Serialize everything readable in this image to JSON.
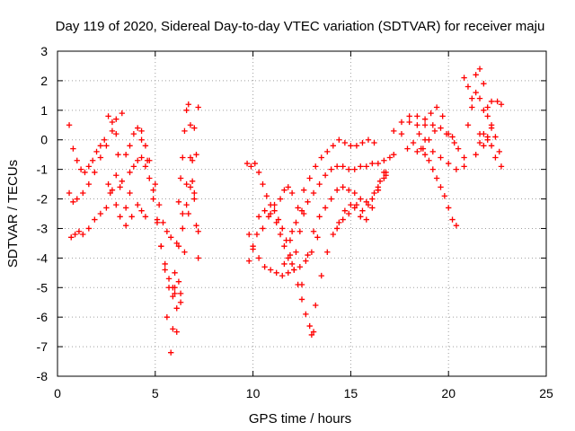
{
  "chart_data": {
    "type": "scatter",
    "title": "Day 119 of 2020, Sidereal Day-to-day VTEC variation (SDTVAR) for receiver maju",
    "xlabel": "GPS time / hours",
    "ylabel": "SDTVAR / TECUs",
    "xlim": [
      0,
      25
    ],
    "ylim": [
      -8,
      3
    ],
    "xticks": [
      0,
      5,
      10,
      15,
      20,
      25
    ],
    "yticks": [
      -8,
      -7,
      -6,
      -5,
      -4,
      -3,
      -2,
      -1,
      0,
      1,
      2,
      3
    ],
    "xtick_labels": [
      "0",
      "5",
      "10",
      "15",
      "20",
      "25"
    ],
    "ytick_labels": [
      "-8",
      "-7",
      "-6",
      "-5",
      "-4",
      "-3",
      "-2",
      "-1",
      "0",
      "1",
      "2",
      "3"
    ],
    "grid": true,
    "marker": "+",
    "color": "#ff0000",
    "series": [
      {
        "x": [
          0.6,
          0.8,
          1.0,
          1.2,
          1.4,
          1.6,
          1.8,
          2.0,
          2.2,
          2.4
        ],
        "y": [
          0.5,
          -0.3,
          -0.7,
          -1.0,
          -1.1,
          -0.9,
          -0.7,
          -0.4,
          -0.2,
          0.0
        ]
      },
      {
        "x": [
          0.6,
          0.8,
          1.0,
          1.3,
          1.6,
          1.9,
          2.2,
          2.5,
          2.8,
          3.0,
          3.3
        ],
        "y": [
          -1.8,
          -2.1,
          -2.0,
          -1.8,
          -1.5,
          -1.1,
          -0.6,
          -0.2,
          0.3,
          0.7,
          0.9
        ]
      },
      {
        "x": [
          0.7,
          0.9,
          1.1,
          1.3,
          1.6,
          1.9,
          2.2,
          2.5,
          2.7,
          3.0,
          3.2
        ],
        "y": [
          -3.3,
          -3.2,
          -3.1,
          -3.2,
          -3.0,
          -2.7,
          -2.5,
          -2.3,
          -1.8,
          -1.2,
          -1.6
        ]
      },
      {
        "x": [
          2.6,
          2.8,
          3.0,
          3.1,
          3.3,
          3.5,
          3.7
        ],
        "y": [
          0.8,
          0.6,
          0.2,
          -0.5,
          -1.4,
          -2.3,
          -1.8
        ]
      },
      {
        "x": [
          2.6,
          2.8,
          3.0,
          3.2,
          3.5,
          3.8,
          4.1,
          4.3,
          4.5
        ],
        "y": [
          -1.5,
          -1.7,
          -2.2,
          -2.6,
          -2.9,
          -2.6,
          -2.2,
          -2.4,
          -2.6
        ]
      },
      {
        "x": [
          3.5,
          3.7,
          3.9,
          4.1,
          4.3,
          4.5,
          4.7,
          5.0,
          5.2,
          5.4,
          5.6,
          5.8
        ],
        "y": [
          -0.5,
          -0.2,
          0.2,
          0.4,
          0.3,
          -0.2,
          -0.7,
          -1.5,
          -2.2,
          -2.8,
          -3.1,
          -3.3
        ]
      },
      {
        "x": [
          3.7,
          3.9,
          4.1,
          4.3,
          4.5,
          4.7,
          4.9,
          5.1,
          5.3,
          5.5,
          5.7,
          5.9,
          6.0,
          6.2
        ],
        "y": [
          -1.1,
          -0.9,
          -0.7,
          -0.6,
          -0.9,
          -1.3,
          -2.0,
          -2.8,
          -3.6,
          -4.2,
          -4.7,
          -5.0,
          -5.2,
          -4.8
        ]
      },
      {
        "x": [
          4.3,
          4.6,
          4.9,
          5.1,
          5.3,
          5.5,
          5.7,
          5.9,
          6.1,
          6.3
        ],
        "y": [
          0.0,
          -0.7,
          -1.7,
          -2.7,
          -3.6,
          -4.4,
          -5.0,
          -5.3,
          -5.7,
          -5.5
        ]
      },
      {
        "x": [
          5.6,
          5.8,
          5.9,
          6.0,
          6.1,
          6.2,
          6.3,
          6.4,
          6.5,
          6.6,
          6.7,
          6.8,
          6.9,
          7.0,
          7.1,
          7.2
        ],
        "y": [
          -6.0,
          -7.2,
          -6.4,
          -5.0,
          -3.5,
          -2.1,
          -1.3,
          -0.6,
          0.3,
          1.0,
          1.2,
          0.5,
          -0.7,
          -1.8,
          -2.9,
          -4.0
        ]
      },
      {
        "x": [
          6.0,
          6.2,
          6.4,
          6.6,
          6.8,
          7.0,
          7.2
        ],
        "y": [
          -4.5,
          -3.6,
          -2.5,
          -1.5,
          -0.6,
          0.4,
          1.1
        ]
      },
      {
        "x": [
          6.1,
          6.3,
          6.5,
          6.7,
          6.9,
          7.1
        ],
        "y": [
          -6.5,
          -5.2,
          -3.8,
          -2.5,
          -1.4,
          -0.5
        ]
      },
      {
        "x": [
          6.4,
          6.6,
          6.8,
          7.0,
          7.2
        ],
        "y": [
          -3.0,
          -2.2,
          -1.6,
          -2.0,
          -3.1
        ]
      },
      {
        "x": [
          9.7,
          9.9,
          10.1,
          10.3,
          10.5,
          10.7,
          10.9,
          11.1,
          11.3,
          11.5,
          11.7,
          11.9,
          12.1,
          12.3,
          12.5,
          12.7,
          12.9,
          13.0,
          13.1
        ],
        "y": [
          -0.8,
          -0.9,
          -0.8,
          -1.1,
          -1.5,
          -1.9,
          -2.2,
          -2.4,
          -2.7,
          -3.0,
          -3.4,
          -3.9,
          -4.4,
          -4.9,
          -5.4,
          -5.9,
          -6.3,
          -6.6,
          -6.5
        ]
      },
      {
        "x": [
          9.8,
          10.0,
          10.3,
          10.6,
          10.9,
          11.2,
          11.5,
          11.8,
          12.1,
          12.4,
          12.7,
          13.0,
          13.3
        ],
        "y": [
          -3.2,
          -3.6,
          -4.0,
          -4.3,
          -4.4,
          -4.5,
          -4.6,
          -4.5,
          -4.4,
          -4.3,
          -4.1,
          -3.8,
          -3.3
        ]
      },
      {
        "x": [
          9.8,
          10.0,
          10.2,
          10.5,
          10.8,
          11.1,
          11.4,
          11.6,
          11.8,
          12.0
        ],
        "y": [
          -4.1,
          -3.7,
          -3.2,
          -3.0,
          -2.6,
          -2.2,
          -2.0,
          -1.7,
          -1.6,
          -1.8
        ]
      },
      {
        "x": [
          10.3,
          10.6,
          10.9,
          11.2,
          11.4,
          11.6,
          11.8,
          12.0,
          12.2,
          12.4,
          12.6
        ],
        "y": [
          -2.6,
          -2.4,
          -2.5,
          -2.8,
          -3.2,
          -3.6,
          -4.0,
          -4.2,
          -3.8,
          -3.1,
          -2.5
        ]
      },
      {
        "x": [
          11.6,
          11.9,
          12.2,
          12.5,
          12.8,
          13.1,
          13.4,
          13.7,
          14.0,
          14.3,
          14.6,
          14.9,
          15.2,
          15.5,
          15.8,
          16.1,
          16.4,
          16.7
        ],
        "y": [
          -4.2,
          -3.4,
          -2.8,
          -2.4,
          -2.1,
          -1.8,
          -1.5,
          -1.2,
          -1.0,
          -0.9,
          -0.9,
          -1.0,
          -1.0,
          -0.9,
          -0.9,
          -0.8,
          -0.8,
          -0.7
        ]
      },
      {
        "x": [
          12.0,
          12.3,
          12.6,
          12.9,
          13.2,
          13.5,
          13.8,
          14.1,
          14.4,
          14.7,
          15.0,
          15.3,
          15.6,
          15.9,
          16.2
        ],
        "y": [
          -3.1,
          -2.3,
          -1.7,
          -1.3,
          -0.9,
          -0.6,
          -0.4,
          -0.2,
          0.0,
          -0.1,
          -0.2,
          -0.2,
          -0.1,
          0.0,
          -0.1
        ]
      },
      {
        "x": [
          12.5,
          12.8,
          13.1,
          13.4,
          13.7,
          14.0,
          14.3,
          14.6,
          14.9,
          15.2,
          15.5,
          15.8,
          16.1,
          16.4,
          16.7
        ],
        "y": [
          -4.9,
          -3.9,
          -3.1,
          -2.6,
          -2.3,
          -2.0,
          -1.7,
          -1.6,
          -1.7,
          -1.8,
          -2.0,
          -2.1,
          -2.0,
          -1.7,
          -1.3
        ]
      },
      {
        "x": [
          13.2,
          13.5,
          13.8,
          14.1,
          14.4,
          14.7,
          15.0,
          15.3,
          15.6,
          15.9,
          16.2,
          16.5,
          16.8
        ],
        "y": [
          -5.6,
          -4.6,
          -3.8,
          -3.2,
          -2.8,
          -2.4,
          -2.2,
          -2.2,
          -2.4,
          -2.2,
          -1.8,
          -1.4,
          -1.1
        ]
      },
      {
        "x": [
          14.3,
          14.6,
          14.9,
          15.2,
          15.5,
          15.8,
          16.1,
          16.4,
          16.7,
          17.0
        ],
        "y": [
          -3.0,
          -2.7,
          -2.5,
          -2.3,
          -2.6,
          -2.7,
          -2.3,
          -1.7,
          -1.1,
          -0.6
        ]
      },
      {
        "x": [
          16.4,
          16.8,
          17.2,
          17.6,
          18.0,
          18.4,
          18.8,
          19.2
        ],
        "y": [
          -1.6,
          -1.2,
          -0.5,
          0.2,
          0.6,
          0.8,
          0.7,
          0.5
        ]
      },
      {
        "x": [
          17.2,
          17.6,
          18.0,
          18.4,
          18.8,
          19.2,
          19.6,
          20.0,
          20.4,
          20.8
        ],
        "y": [
          0.3,
          0.6,
          0.8,
          0.5,
          0.0,
          -0.4,
          -0.6,
          -0.8,
          -1.0,
          -0.9
        ]
      },
      {
        "x": [
          17.9,
          18.2,
          18.5,
          18.8,
          19.1,
          19.4,
          19.7,
          20.0,
          20.3
        ],
        "y": [
          -0.3,
          -0.1,
          0.2,
          0.5,
          0.9,
          1.1,
          0.8,
          0.2,
          -0.1
        ]
      },
      {
        "x": [
          18.4,
          18.7,
          19.0,
          19.3,
          19.6,
          19.9,
          20.2,
          20.5,
          20.8
        ],
        "y": [
          -0.4,
          -0.3,
          0.0,
          0.3,
          0.4,
          0.2,
          0.1,
          -0.3,
          -0.6
        ]
      },
      {
        "x": [
          18.6,
          18.8,
          19.0,
          19.2,
          19.4,
          19.6,
          19.8,
          20.0,
          20.2,
          20.4
        ],
        "y": [
          -0.3,
          -0.5,
          -0.7,
          -1.0,
          -1.3,
          -1.6,
          -1.9,
          -2.3,
          -2.7,
          -2.9
        ]
      },
      {
        "x": [
          20.8,
          21.0,
          21.2,
          21.4,
          21.6,
          21.8,
          22.0,
          22.2
        ],
        "y": [
          2.1,
          1.8,
          1.4,
          2.2,
          2.4,
          1.9,
          1.1,
          0.5
        ]
      },
      {
        "x": [
          21.0,
          21.2,
          21.4,
          21.6,
          21.8,
          22.0,
          22.2
        ],
        "y": [
          0.5,
          1.1,
          1.6,
          1.4,
          1.0,
          0.8,
          1.3
        ]
      },
      {
        "x": [
          21.4,
          21.6,
          21.8,
          22.0,
          22.2,
          22.4
        ],
        "y": [
          -0.5,
          -0.1,
          0.2,
          0.0,
          -0.2,
          -0.6
        ]
      },
      {
        "x": [
          21.6,
          21.8,
          22.0,
          22.2,
          22.4,
          22.6,
          22.7
        ],
        "y": [
          0.2,
          -0.2,
          0.1,
          0.4,
          0.1,
          -0.4,
          -0.9
        ]
      },
      {
        "x": [
          22.5,
          22.7
        ],
        "y": [
          1.3,
          1.2
        ]
      }
    ]
  }
}
